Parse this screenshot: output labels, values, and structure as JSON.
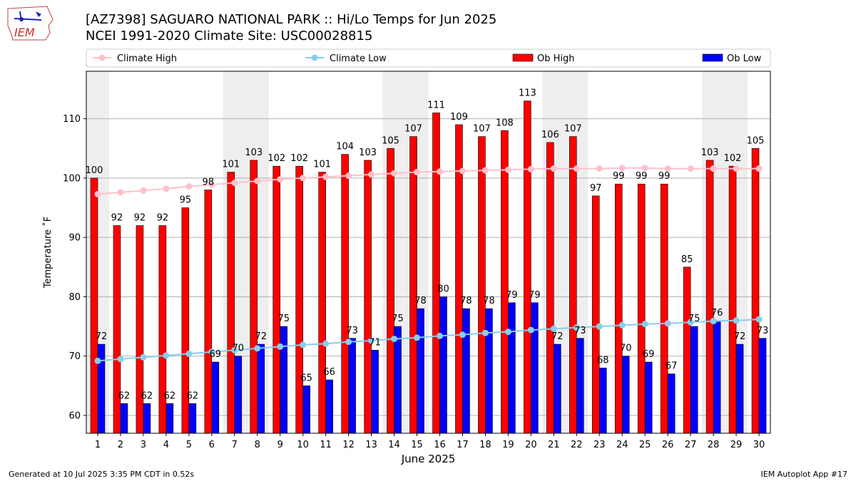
{
  "header": {
    "title_line1": "[AZ7398] SAGUARO NATIONAL PARK :: Hi/Lo Temps for Jun 2025",
    "title_line2": "NCEI 1991-2020 Climate Site: USC00028815",
    "logo_text": "IEM"
  },
  "footer": {
    "left": "Generated at 10 Jul 2025 3:35 PM CDT in 0.52s",
    "right": "IEM Autoplot App #17"
  },
  "colors": {
    "ob_high": "#ff0000",
    "ob_low": "#0000ff",
    "climate_high": "#ffc0cb",
    "climate_low": "#87ceeb",
    "weekend_shade": "#eeeeee",
    "grid": "#b0b0b0"
  },
  "chart_data": {
    "type": "bar",
    "xlabel": "June 2025",
    "ylabel": "Temperature ˚F",
    "ylim": [
      57,
      118
    ],
    "yticks": [
      60,
      70,
      80,
      90,
      100,
      110
    ],
    "grid": true,
    "legend_placement": "top, above plot",
    "categories": [
      "1",
      "2",
      "3",
      "4",
      "5",
      "6",
      "7",
      "8",
      "9",
      "10",
      "11",
      "12",
      "13",
      "14",
      "15",
      "16",
      "17",
      "18",
      "19",
      "20",
      "21",
      "22",
      "23",
      "24",
      "25",
      "26",
      "27",
      "28",
      "29",
      "30"
    ],
    "shaded_days": [
      1,
      7,
      8,
      14,
      15,
      21,
      22,
      28,
      29
    ],
    "series": [
      {
        "name": "Ob High",
        "kind": "bar",
        "values": [
          100,
          92,
          92,
          92,
          95,
          98,
          101,
          103,
          102,
          102,
          101,
          104,
          103,
          105,
          107,
          111,
          109,
          107,
          108,
          113,
          106,
          107,
          97,
          99,
          99,
          99,
          85,
          103,
          102,
          105
        ]
      },
      {
        "name": "Ob Low",
        "kind": "bar",
        "values": [
          72,
          62,
          62,
          62,
          62,
          69,
          70,
          72,
          75,
          65,
          66,
          73,
          71,
          75,
          78,
          80,
          78,
          78,
          79,
          79,
          72,
          73,
          68,
          70,
          69,
          67,
          75,
          76,
          72,
          73
        ]
      },
      {
        "name": "Climate High",
        "kind": "line",
        "values": [
          97.3,
          97.6,
          97.9,
          98.2,
          98.6,
          98.9,
          99.2,
          99.5,
          99.8,
          100.0,
          100.2,
          100.4,
          100.6,
          100.8,
          101.0,
          101.1,
          101.2,
          101.3,
          101.4,
          101.5,
          101.6,
          101.6,
          101.6,
          101.7,
          101.7,
          101.6,
          101.6,
          101.6,
          101.6,
          101.6
        ]
      },
      {
        "name": "Climate Low",
        "kind": "line",
        "values": [
          69.2,
          69.5,
          69.8,
          70.1,
          70.4,
          70.7,
          71.0,
          71.3,
          71.6,
          71.9,
          72.1,
          72.4,
          72.6,
          72.9,
          73.1,
          73.4,
          73.6,
          73.9,
          74.1,
          74.4,
          74.6,
          74.8,
          75.0,
          75.2,
          75.4,
          75.5,
          75.7,
          75.9,
          76.0,
          76.2
        ]
      }
    ]
  }
}
